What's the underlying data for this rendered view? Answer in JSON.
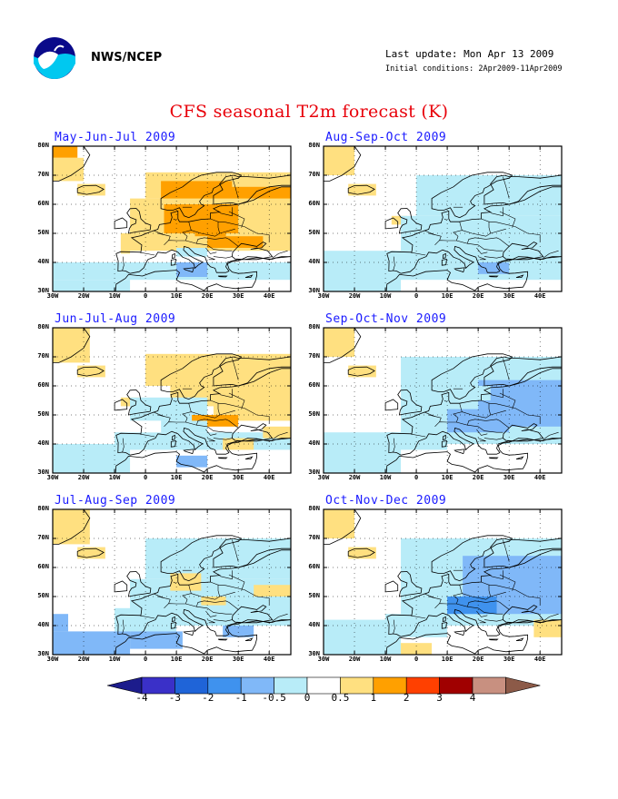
{
  "header": {
    "agency": "NWS/NCEP",
    "last_update": "Last update: Mon Apr 13 2009",
    "initial_conditions": "Initial conditions: 2Apr2009-11Apr2009",
    "title": "CFS seasonal T2m forecast (K)",
    "logo_icon": "noaa-logo-icon"
  },
  "axes": {
    "lat_labels": [
      "80N",
      "70N",
      "60N",
      "50N",
      "40N",
      "30N"
    ],
    "lon_labels": [
      "30W",
      "20W",
      "10W",
      "0",
      "10E",
      "20E",
      "30E",
      "40E"
    ]
  },
  "colors": {
    "land_outline": "#000000",
    "grid_dots": "#000000"
  },
  "panels": [
    {
      "title": "May-Jun-Jul 2009",
      "pattern": "warm_north"
    },
    {
      "title": "Aug-Sep-Oct 2009",
      "pattern": "cool_light"
    },
    {
      "title": "Jun-Jul-Aug 2009",
      "pattern": "warm_mixed"
    },
    {
      "title": "Sep-Oct-Nov 2009",
      "pattern": "cool_east"
    },
    {
      "title": "Jul-Aug-Sep 2009",
      "pattern": "cool_mixed"
    },
    {
      "title": "Oct-Nov-Dec 2009",
      "pattern": "cool_east_strong"
    }
  ],
  "colorbar": {
    "labels": [
      "-4",
      "-3",
      "-2",
      "-1",
      "-0.5",
      "0",
      "0.5",
      "1",
      "2",
      "3",
      "4"
    ],
    "colors": [
      "#1c1c8c",
      "#3a30c8",
      "#1f64d8",
      "#3f92ee",
      "#80b8f8",
      "#b8ecf8",
      "#ffffff",
      "#ffe080",
      "#ffa000",
      "#ff4000",
      "#a00000",
      "#c89080",
      "#8c5a48"
    ]
  }
}
